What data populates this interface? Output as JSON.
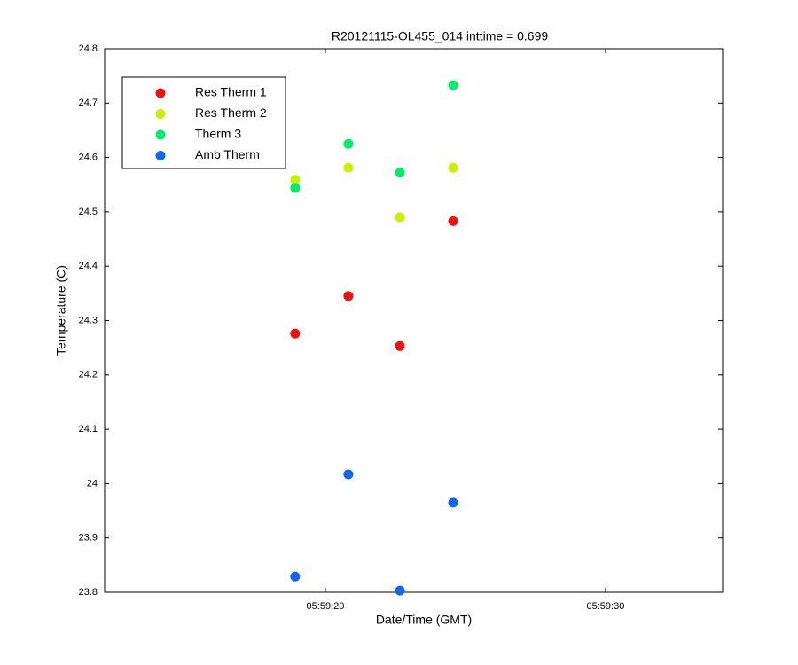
{
  "chart_data": {
    "type": "scatter",
    "title": "R20121115-OL455_014 inttime = 0.699",
    "x_label": "Date/Time (GMT)",
    "y_label": "Temperature (C)",
    "x": [
      21558.92,
      21560.82,
      21562.66,
      21564.56
    ],
    "series": [
      {
        "name": "Res Therm 1",
        "color": "#f01010",
        "values": [
          24.276,
          24.345,
          24.253,
          24.483
        ]
      },
      {
        "name": "Res Therm 2",
        "color": "#ccee00",
        "values": [
          24.559,
          24.581,
          24.49,
          24.581
        ]
      },
      {
        "name": "Therm 3",
        "color": "#00ee66",
        "values": [
          24.544,
          24.625,
          24.572,
          24.733
        ]
      },
      {
        "name": "Amb Therm",
        "color": "#1166ee",
        "values": [
          23.829,
          24.017,
          23.803,
          23.965
        ]
      }
    ],
    "xlim": [
      21552.12,
      21574.18
    ],
    "xticks": [
      {
        "value": 21560,
        "label": "05:59:20"
      },
      {
        "value": 21570,
        "label": "05:59:30"
      }
    ],
    "ylim": [
      23.8,
      24.8
    ],
    "yticks": [
      23.8,
      23.9,
      24,
      24.1,
      24.2,
      24.3,
      24.4,
      24.5,
      24.6,
      24.7,
      24.8
    ],
    "grid": false,
    "legend": "upper left"
  }
}
